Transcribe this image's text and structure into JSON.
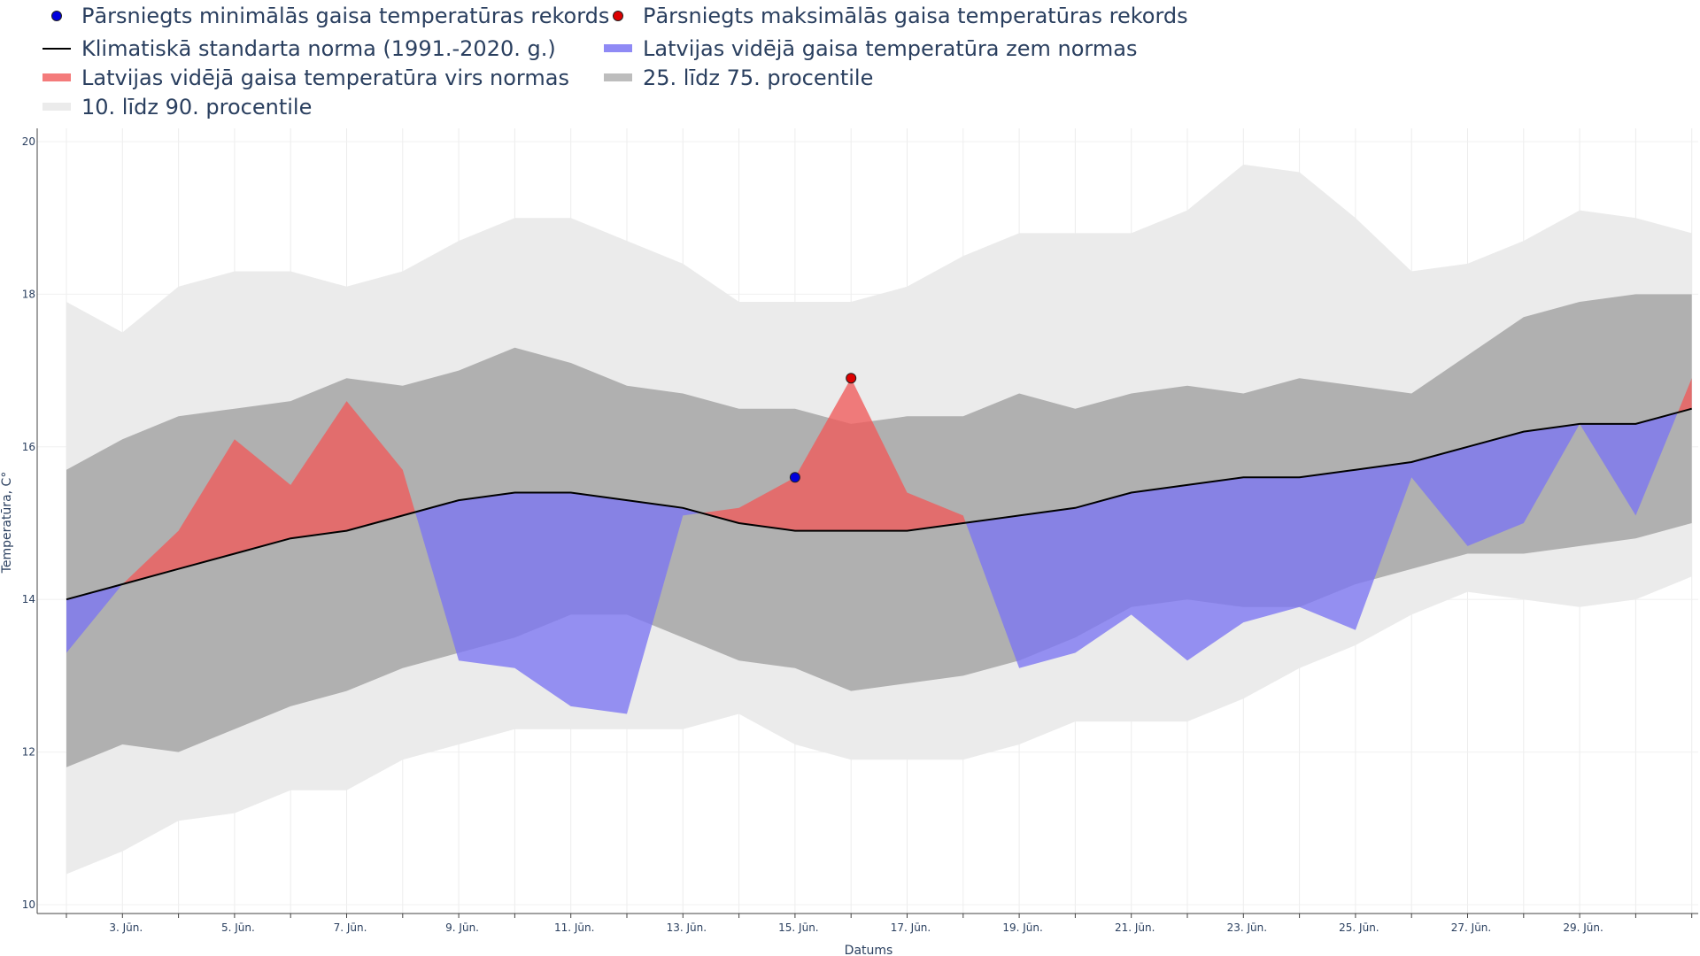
{
  "chart_data": {
    "type": "area",
    "xlabel": "Datums",
    "ylabel": "Temperatūra, C°",
    "ylim": [
      10,
      20
    ],
    "y_ticks": [
      10,
      12,
      14,
      16,
      18,
      20
    ],
    "x_ticks": [
      "3. Jūn.",
      "5. Jūn.",
      "7. Jūn.",
      "9. Jūn.",
      "11. Jūn.",
      "13. Jūn.",
      "15. Jūn.",
      "17. Jūn.",
      "19. Jūn.",
      "21. Jūn.",
      "23. Jūn.",
      "25. Jūn.",
      "27. Jūn.",
      "29. Jūn."
    ],
    "days": [
      2,
      3,
      4,
      5,
      6,
      7,
      8,
      9,
      10,
      11,
      12,
      13,
      14,
      15,
      16,
      17,
      18,
      19,
      20,
      21,
      22,
      23,
      24,
      25,
      26,
      27,
      28,
      29,
      30,
      31
    ],
    "legend": [
      {
        "name": "Pārsniegts minimālās gaisa temperatūras rekords",
        "kind": "dot",
        "color": "#0000dd"
      },
      {
        "name": "Pārsniegts maksimālās gaisa temperatūras rekords",
        "kind": "dot",
        "color": "#dd0000"
      },
      {
        "name": "Klimatiskā standarta norma (1991.-2020. g.)",
        "kind": "line",
        "color": "#000000"
      },
      {
        "name": "Latvijas vidējā gaisa temperatūra zem normas",
        "kind": "band",
        "color": "#8f8af5"
      },
      {
        "name": "Latvijas vidējā gaisa temperatūra virs normas",
        "kind": "band",
        "color": "#f47b7b"
      },
      {
        "name": "25. līdz 75. procentile",
        "kind": "band",
        "color": "#bdbdbd"
      },
      {
        "name": "10. līdz 90. procentile",
        "kind": "band",
        "color": "#ebebeb"
      }
    ],
    "series": {
      "norm": [
        14.0,
        14.2,
        14.4,
        14.6,
        14.8,
        14.9,
        15.1,
        15.3,
        15.4,
        15.4,
        15.3,
        15.2,
        15.0,
        14.9,
        14.9,
        14.9,
        15.0,
        15.1,
        15.2,
        15.4,
        15.5,
        15.6,
        15.6,
        15.7,
        15.8,
        16.0,
        16.2,
        16.3,
        16.3,
        16.5
      ],
      "actual": [
        13.3,
        14.2,
        14.9,
        16.1,
        15.5,
        16.6,
        15.7,
        13.2,
        13.1,
        12.6,
        12.5,
        15.1,
        15.2,
        15.6,
        16.9,
        15.4,
        15.1,
        13.1,
        13.3,
        13.8,
        13.2,
        13.7,
        13.9,
        13.6,
        15.6,
        14.7,
        15.0,
        16.3,
        15.1,
        16.9
      ],
      "p10": [
        10.4,
        10.7,
        11.1,
        11.2,
        11.5,
        11.5,
        11.9,
        12.1,
        12.3,
        12.3,
        12.3,
        12.3,
        12.5,
        12.1,
        11.9,
        11.9,
        11.9,
        12.1,
        12.4,
        12.4,
        12.4,
        12.7,
        13.1,
        13.4,
        13.8,
        14.1,
        14.0,
        13.9,
        14.0,
        14.3
      ],
      "p90": [
        17.9,
        17.5,
        18.1,
        18.3,
        18.3,
        18.1,
        18.3,
        18.7,
        19.0,
        19.0,
        18.7,
        18.4,
        17.9,
        17.9,
        17.9,
        18.1,
        18.5,
        18.8,
        18.8,
        18.8,
        19.1,
        19.7,
        19.6,
        19.0,
        18.3,
        18.4,
        18.7,
        19.1,
        19.0,
        18.8
      ],
      "p25": [
        11.8,
        12.1,
        12.0,
        12.3,
        12.6,
        12.8,
        13.1,
        13.3,
        13.5,
        13.8,
        13.8,
        13.5,
        13.2,
        13.1,
        12.8,
        12.9,
        13.0,
        13.2,
        13.5,
        13.9,
        14.0,
        13.9,
        13.9,
        14.2,
        14.4,
        14.6,
        14.6,
        14.7,
        14.8,
        15.0
      ],
      "p75": [
        15.7,
        16.1,
        16.4,
        16.5,
        16.6,
        16.9,
        16.8,
        17.0,
        17.3,
        17.1,
        16.8,
        16.7,
        16.5,
        16.5,
        16.3,
        16.4,
        16.4,
        16.7,
        16.5,
        16.7,
        16.8,
        16.7,
        16.9,
        16.8,
        16.7,
        17.2,
        17.7,
        17.9,
        18.0,
        18.0
      ]
    },
    "records_min": [
      {
        "x": 15,
        "y": 15.6
      }
    ],
    "records_max": [
      {
        "x": 16,
        "y": 16.9
      }
    ]
  }
}
